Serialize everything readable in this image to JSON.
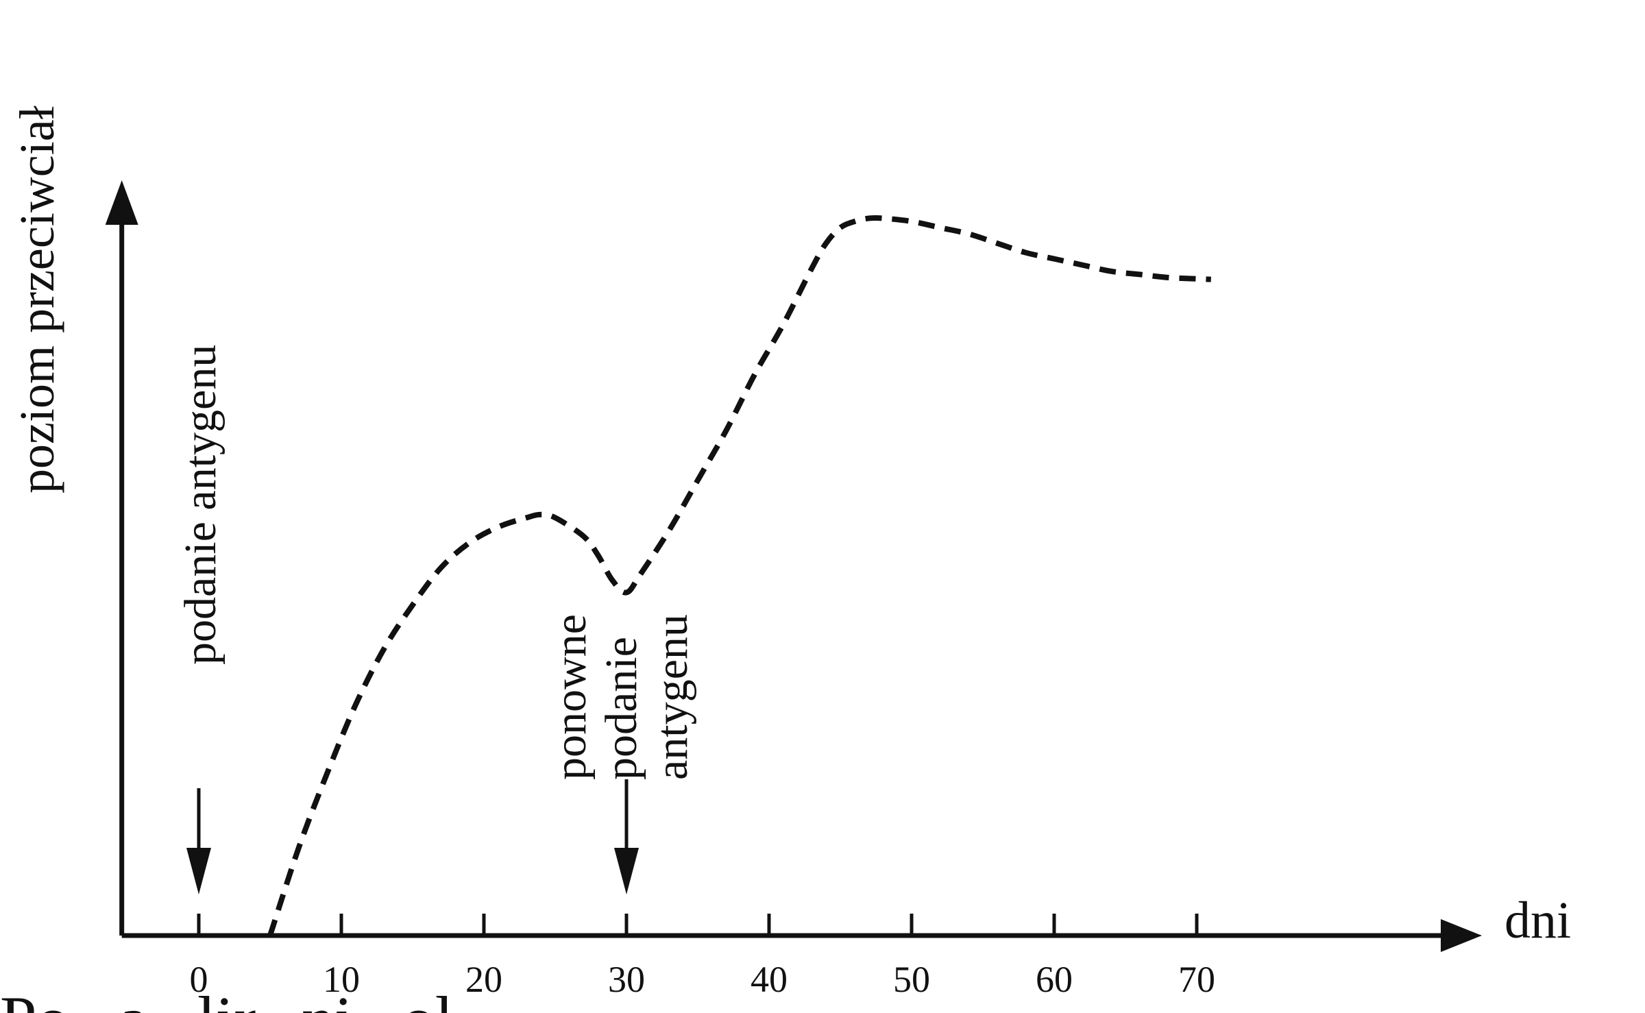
{
  "chart_data": {
    "type": "line",
    "title": "",
    "xlabel": "dni",
    "ylabel": "poziom przeciwciał",
    "xlim": [
      -5.4,
      90
    ],
    "ylim": [
      0,
      120
    ],
    "grid": false,
    "legend": "none",
    "x_ticks": [
      0,
      10,
      20,
      30,
      40,
      50,
      60,
      70
    ],
    "x_tick_labels": [
      "0",
      "10",
      "20",
      "30",
      "40",
      "50",
      "60",
      "70"
    ],
    "series": [
      {
        "style": "dashed",
        "x": [
          5,
          7,
          9,
          11,
          13,
          15,
          17,
          19,
          21,
          23,
          24,
          25,
          27,
          28,
          29,
          30,
          31,
          33,
          35,
          37,
          39,
          41,
          43,
          44,
          45,
          46,
          47,
          48,
          50,
          52,
          54,
          56,
          58,
          60,
          62,
          64,
          66,
          68,
          70,
          71
        ],
        "y": [
          0,
          14,
          26,
          37,
          46,
          53,
          59,
          63,
          65.5,
          67,
          67.5,
          67,
          64,
          61,
          57,
          55,
          58,
          65,
          73,
          81,
          90,
          98,
          107,
          111,
          113.5,
          114.5,
          115,
          115,
          114.5,
          113.5,
          112.5,
          111,
          109.5,
          108.5,
          107.5,
          106.5,
          106,
          105.5,
          105.3,
          105.2
        ]
      }
    ],
    "annotations": [
      {
        "x": 0,
        "label": "podanie antygenu",
        "lines": [
          "podanie antygenu"
        ]
      },
      {
        "x": 30,
        "label": "ponowne podanie antygenu",
        "lines": [
          "ponowne",
          "podanie",
          "antygenu"
        ]
      }
    ]
  },
  "caption_fragment": "Po...a...lir...ni...ol..."
}
